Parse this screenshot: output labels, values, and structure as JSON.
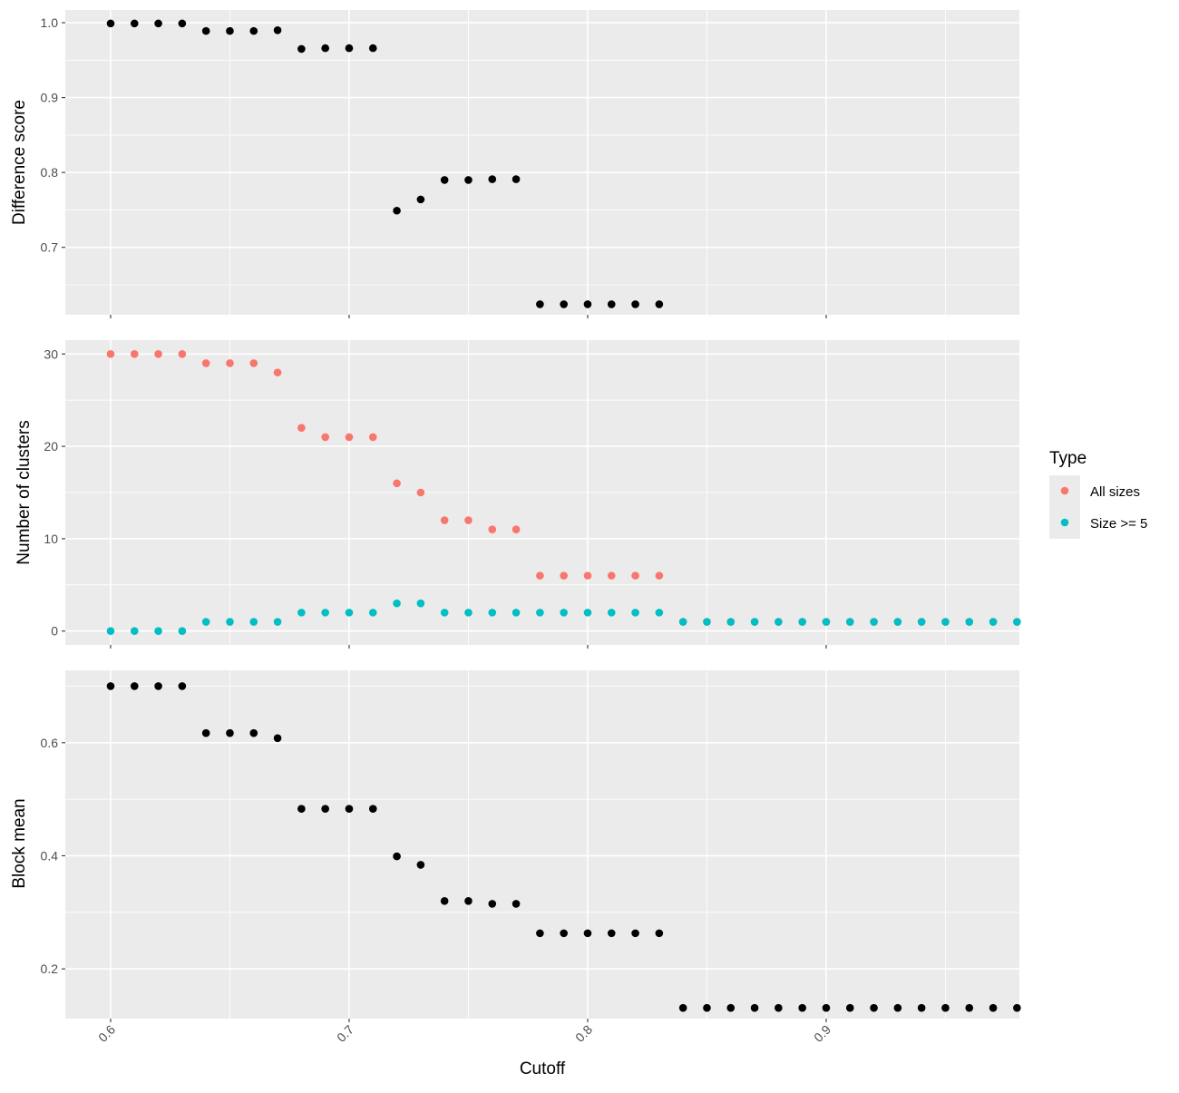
{
  "chart_data": [
    {
      "type": "scatter",
      "ylabel": "Difference score",
      "xlim": [
        0.581,
        0.981
      ],
      "ylim": [
        0.61,
        1.017
      ],
      "y_ticks": [
        0.7,
        0.8,
        0.9,
        1.0
      ],
      "y_tick_labels": [
        "0.7",
        "0.8",
        "0.9",
        "1.0"
      ],
      "point_color": "#000000",
      "series": [
        {
          "x": [
            0.6,
            0.61,
            0.62,
            0.63,
            0.64,
            0.65,
            0.66,
            0.67,
            0.68,
            0.69,
            0.7,
            0.71,
            0.72,
            0.73,
            0.74,
            0.75,
            0.76,
            0.77,
            0.78,
            0.79,
            0.8,
            0.81,
            0.82,
            0.83
          ],
          "y": [
            0.999,
            0.999,
            0.999,
            0.999,
            0.989,
            0.989,
            0.989,
            0.99,
            0.965,
            0.966,
            0.966,
            0.966,
            0.749,
            0.764,
            0.79,
            0.79,
            0.791,
            0.791,
            0.624,
            0.624,
            0.624,
            0.624,
            0.624,
            0.624
          ]
        }
      ]
    },
    {
      "type": "scatter",
      "ylabel": "Number of clusters",
      "xlim": [
        0.581,
        0.981
      ],
      "ylim": [
        -1.5,
        31.5
      ],
      "y_ticks": [
        0,
        10,
        20,
        30
      ],
      "y_tick_labels": [
        "0",
        "10",
        "20",
        "30"
      ],
      "legend": {
        "title": "Type",
        "position": "right",
        "entries": [
          {
            "label": "All sizes",
            "color": "#F8766D"
          },
          {
            "label": "Size >= 5",
            "color": "#00BFC4"
          }
        ]
      },
      "series": [
        {
          "name": "All sizes",
          "color": "#F8766D",
          "x": [
            0.6,
            0.61,
            0.62,
            0.63,
            0.64,
            0.65,
            0.66,
            0.67,
            0.68,
            0.69,
            0.7,
            0.71,
            0.72,
            0.73,
            0.74,
            0.75,
            0.76,
            0.77,
            0.78,
            0.79,
            0.8,
            0.81,
            0.82,
            0.83,
            0.84,
            0.85,
            0.86,
            0.87,
            0.88,
            0.89,
            0.9,
            0.91,
            0.92,
            0.93,
            0.94,
            0.95,
            0.96,
            0.97,
            0.98
          ],
          "y": [
            30,
            30,
            30,
            30,
            29,
            29,
            29,
            28,
            22,
            21,
            21,
            21,
            16,
            15,
            12,
            12,
            11,
            11,
            6,
            6,
            6,
            6,
            6,
            6,
            1,
            1,
            1,
            1,
            1,
            1,
            1,
            1,
            1,
            1,
            1,
            1,
            1,
            1,
            1
          ]
        },
        {
          "name": "Size >= 5",
          "color": "#00BFC4",
          "x": [
            0.6,
            0.61,
            0.62,
            0.63,
            0.64,
            0.65,
            0.66,
            0.67,
            0.68,
            0.69,
            0.7,
            0.71,
            0.72,
            0.73,
            0.74,
            0.75,
            0.76,
            0.77,
            0.78,
            0.79,
            0.8,
            0.81,
            0.82,
            0.83,
            0.84,
            0.85,
            0.86,
            0.87,
            0.88,
            0.89,
            0.9,
            0.91,
            0.92,
            0.93,
            0.94,
            0.95,
            0.96,
            0.97,
            0.98
          ],
          "y": [
            0,
            0,
            0,
            0,
            1,
            1,
            1,
            1,
            2,
            2,
            2,
            2,
            3,
            3,
            2,
            2,
            2,
            2,
            2,
            2,
            2,
            2,
            2,
            2,
            1,
            1,
            1,
            1,
            1,
            1,
            1,
            1,
            1,
            1,
            1,
            1,
            1,
            1,
            1
          ]
        }
      ]
    },
    {
      "type": "scatter",
      "ylabel": "Block mean",
      "xlabel": "Cutoff",
      "xlim": [
        0.581,
        0.981
      ],
      "ylim": [
        0.112,
        0.728
      ],
      "x_ticks": [
        0.6,
        0.7,
        0.8,
        0.9
      ],
      "x_tick_labels": [
        "0.6",
        "0.7",
        "0.8",
        "0.9"
      ],
      "y_ticks": [
        0.2,
        0.4,
        0.6
      ],
      "y_tick_labels": [
        "0.2",
        "0.4",
        "0.6"
      ],
      "point_color": "#000000",
      "series": [
        {
          "x": [
            0.6,
            0.61,
            0.62,
            0.63,
            0.64,
            0.65,
            0.66,
            0.67,
            0.68,
            0.69,
            0.7,
            0.71,
            0.72,
            0.73,
            0.74,
            0.75,
            0.76,
            0.77,
            0.78,
            0.79,
            0.8,
            0.81,
            0.82,
            0.83,
            0.84,
            0.85,
            0.86,
            0.87,
            0.88,
            0.89,
            0.9,
            0.91,
            0.92,
            0.93,
            0.94,
            0.95,
            0.96,
            0.97,
            0.98
          ],
          "y": [
            0.7,
            0.7,
            0.7,
            0.7,
            0.617,
            0.617,
            0.617,
            0.608,
            0.483,
            0.483,
            0.483,
            0.483,
            0.399,
            0.384,
            0.32,
            0.32,
            0.315,
            0.315,
            0.263,
            0.263,
            0.263,
            0.263,
            0.263,
            0.263,
            0.131,
            0.131,
            0.131,
            0.131,
            0.131,
            0.131,
            0.131,
            0.131,
            0.131,
            0.131,
            0.131,
            0.131,
            0.131,
            0.131,
            0.131
          ]
        }
      ]
    }
  ]
}
